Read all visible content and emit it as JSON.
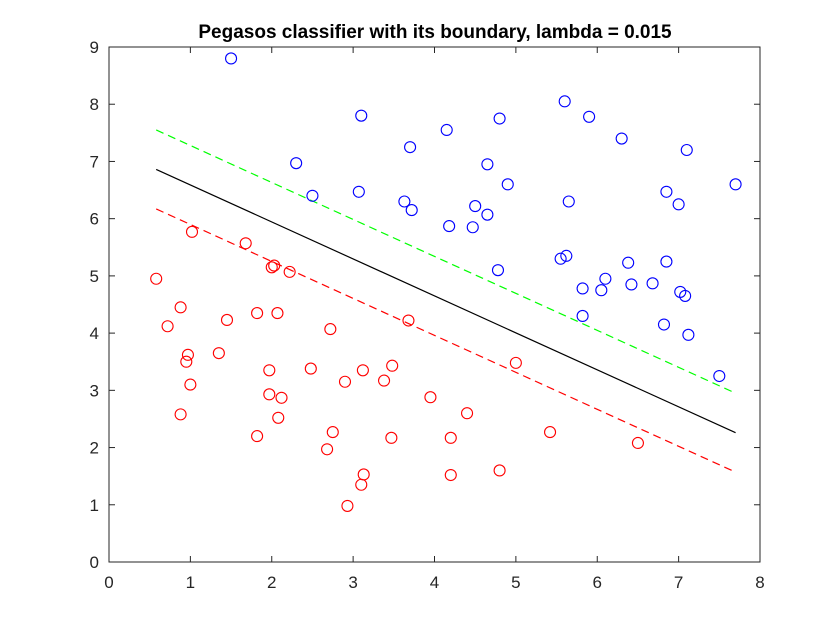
{
  "chart_data": {
    "type": "scatter",
    "title": "Pegasos classifier with its boundary, lambda = 0.015",
    "xlabel": "",
    "ylabel": "",
    "xlim": [
      0,
      8
    ],
    "ylim": [
      0,
      9
    ],
    "xticks": [
      "0",
      "1",
      "2",
      "3",
      "4",
      "5",
      "6",
      "7",
      "8"
    ],
    "yticks": [
      "0",
      "1",
      "2",
      "3",
      "4",
      "5",
      "6",
      "7",
      "8",
      "9"
    ],
    "grid": false,
    "legend": "none",
    "marker": "open-circle",
    "series": [
      {
        "color": "#0000ff",
        "points": [
          [
            1.5,
            8.8
          ],
          [
            3.1,
            7.8
          ],
          [
            4.15,
            7.55
          ],
          [
            4.8,
            7.75
          ],
          [
            5.6,
            8.05
          ],
          [
            5.9,
            7.78
          ],
          [
            6.3,
            7.4
          ],
          [
            7.1,
            7.2
          ],
          [
            2.3,
            6.97
          ],
          [
            3.7,
            7.25
          ],
          [
            4.65,
            6.95
          ],
          [
            4.9,
            6.6
          ],
          [
            2.5,
            6.4
          ],
          [
            3.07,
            6.47
          ],
          [
            3.63,
            6.3
          ],
          [
            3.72,
            6.15
          ],
          [
            4.5,
            6.22
          ],
          [
            4.65,
            6.07
          ],
          [
            5.65,
            6.3
          ],
          [
            6.85,
            6.47
          ],
          [
            7.0,
            6.25
          ],
          [
            7.7,
            6.6
          ],
          [
            4.18,
            5.87
          ],
          [
            4.47,
            5.85
          ],
          [
            5.55,
            5.3
          ],
          [
            5.62,
            5.35
          ],
          [
            4.78,
            5.1
          ],
          [
            6.38,
            5.23
          ],
          [
            6.85,
            5.25
          ],
          [
            6.1,
            4.95
          ],
          [
            5.82,
            4.78
          ],
          [
            6.05,
            4.75
          ],
          [
            6.42,
            4.85
          ],
          [
            6.68,
            4.87
          ],
          [
            7.02,
            4.72
          ],
          [
            7.08,
            4.65
          ],
          [
            5.82,
            4.3
          ],
          [
            6.82,
            4.15
          ],
          [
            7.12,
            3.97
          ],
          [
            7.5,
            3.25
          ]
        ]
      },
      {
        "color": "#ff0000",
        "points": [
          [
            0.58,
            4.95
          ],
          [
            1.02,
            5.77
          ],
          [
            1.68,
            5.57
          ],
          [
            2.0,
            5.15
          ],
          [
            2.03,
            5.18
          ],
          [
            2.22,
            5.07
          ],
          [
            0.88,
            4.45
          ],
          [
            0.72,
            4.12
          ],
          [
            1.45,
            4.23
          ],
          [
            1.82,
            4.35
          ],
          [
            2.07,
            4.35
          ],
          [
            3.68,
            4.22
          ],
          [
            2.72,
            4.07
          ],
          [
            0.97,
            3.62
          ],
          [
            0.95,
            3.5
          ],
          [
            1.35,
            3.65
          ],
          [
            1.97,
            3.35
          ],
          [
            2.48,
            3.38
          ],
          [
            3.12,
            3.35
          ],
          [
            3.48,
            3.43
          ],
          [
            5.0,
            3.48
          ],
          [
            1.0,
            3.1
          ],
          [
            1.97,
            2.93
          ],
          [
            2.12,
            2.87
          ],
          [
            2.9,
            3.15
          ],
          [
            3.38,
            3.17
          ],
          [
            3.95,
            2.88
          ],
          [
            0.88,
            2.58
          ],
          [
            2.08,
            2.52
          ],
          [
            4.4,
            2.6
          ],
          [
            1.82,
            2.2
          ],
          [
            2.75,
            2.27
          ],
          [
            3.47,
            2.17
          ],
          [
            4.2,
            2.17
          ],
          [
            5.42,
            2.27
          ],
          [
            6.5,
            2.08
          ],
          [
            2.68,
            1.97
          ],
          [
            3.13,
            1.53
          ],
          [
            3.1,
            1.35
          ],
          [
            4.2,
            1.52
          ],
          [
            4.8,
            1.6
          ],
          [
            2.93,
            0.98
          ]
        ]
      }
    ],
    "lines": [
      {
        "color": "#000000",
        "style": "solid",
        "x": [
          0.58,
          7.7
        ],
        "y": [
          6.86,
          2.26
        ]
      },
      {
        "color": "#00ff00",
        "style": "dashed",
        "x": [
          0.58,
          7.7
        ],
        "y": [
          7.55,
          2.95
        ]
      },
      {
        "color": "#ff0000",
        "style": "dashed",
        "x": [
          0.58,
          7.7
        ],
        "y": [
          6.17,
          1.57
        ]
      }
    ]
  }
}
